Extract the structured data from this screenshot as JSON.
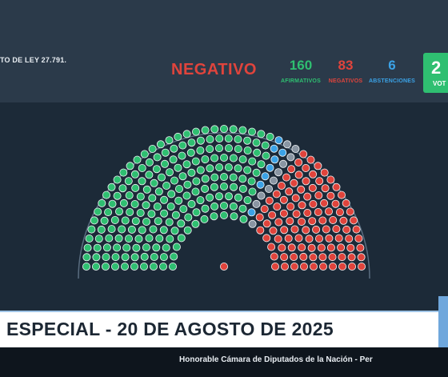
{
  "header": {
    "law_text": "TO DE LEY 27.791.",
    "result": "NEGATIVO",
    "stats": {
      "afirmativos": {
        "value": "160",
        "label": "AFIRMATIVOS"
      },
      "negativos": {
        "value": "83",
        "label": "NEGATIVOS"
      },
      "abstenciones": {
        "value": "6",
        "label": "ABSTENCIONES"
      },
      "votos": {
        "value": "2",
        "label": "VOT"
      }
    }
  },
  "colors": {
    "afirmativo": "#2fbf71",
    "negativo": "#e0443c",
    "abstencion": "#3ba2e6",
    "ausente": "#8a96a3"
  },
  "seats": {
    "afirmativos": 160,
    "negativos": 83,
    "abstenciones": 6,
    "ausentes": 8
  },
  "banner": {
    "title": "ESPECIAL - 20 DE AGOSTO DE 2025"
  },
  "footer": {
    "text": "Honorable Cámara de Diputados de la Nación - Per"
  }
}
